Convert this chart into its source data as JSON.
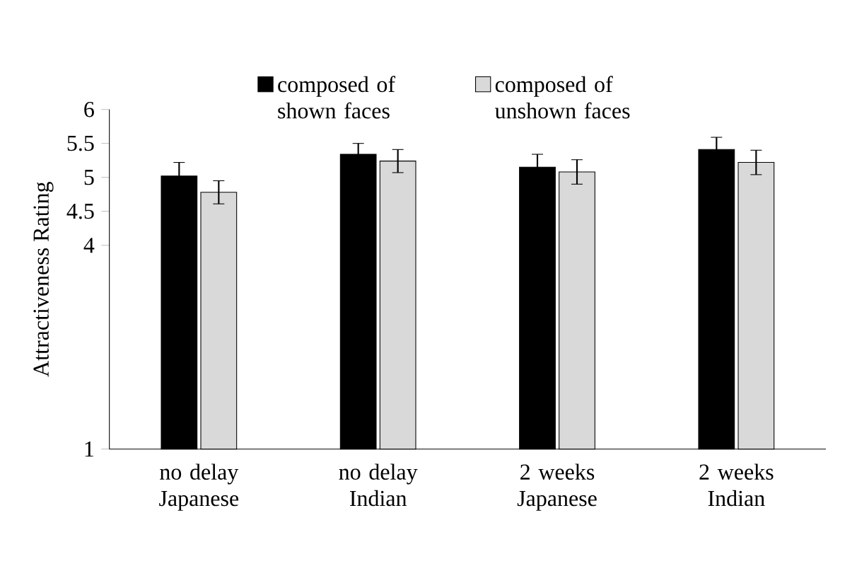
{
  "chart_data": {
    "type": "bar",
    "ylabel": "Attractiveness Rating",
    "categories": [
      "no delay Japanese",
      "no delay Indian",
      "2 weeks Japanese",
      "2 weeks Indian"
    ],
    "series": [
      {
        "name": "composed of shown faces",
        "color": "#000000",
        "values": [
          5.02,
          5.34,
          5.15,
          5.41
        ],
        "errors": [
          0.2,
          0.16,
          0.19,
          0.18
        ]
      },
      {
        "name": "composed of unshown faces",
        "color": "#d9d9d9",
        "values": [
          4.78,
          5.24,
          5.08,
          5.22
        ],
        "errors": [
          0.17,
          0.17,
          0.18,
          0.18
        ]
      }
    ],
    "ylim": [
      1,
      6
    ],
    "yticks": [
      1,
      4,
      4.5,
      5,
      5.5,
      6
    ],
    "legend": "top",
    "grid": false
  }
}
